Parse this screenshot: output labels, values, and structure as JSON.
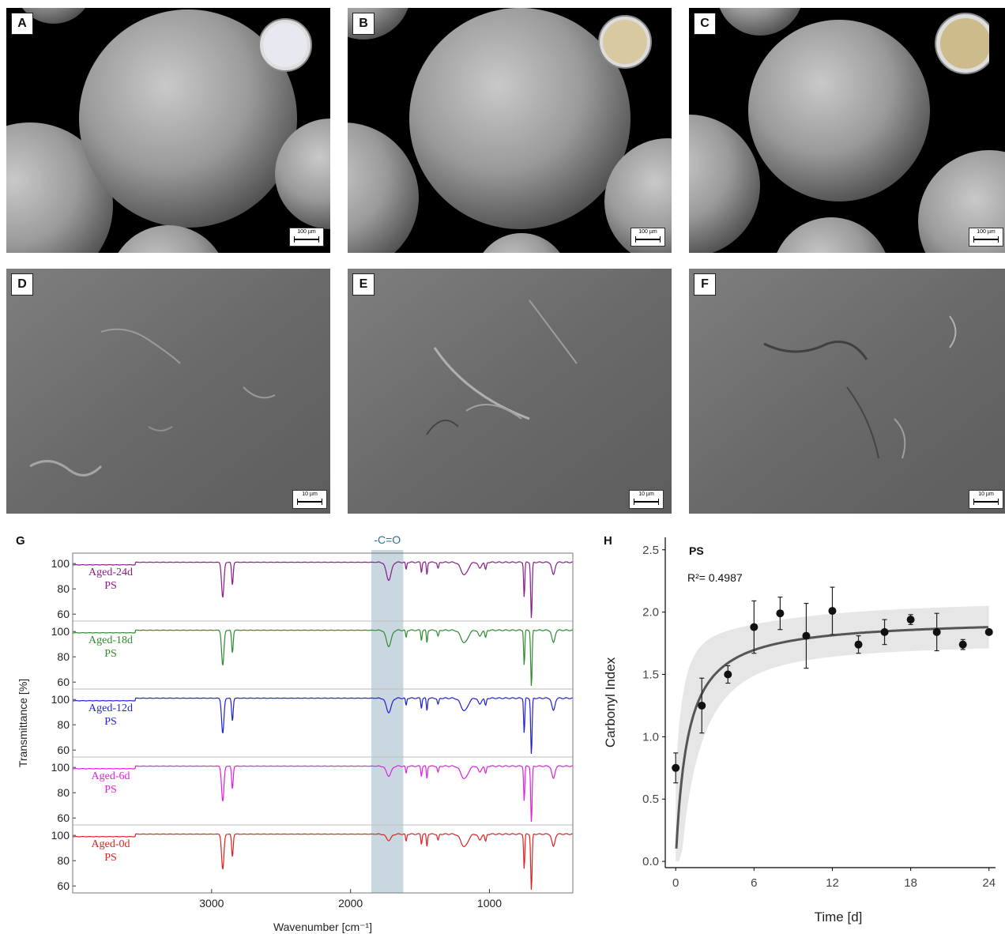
{
  "figure": {
    "panels": [
      {
        "label": "A",
        "scale_bar": "100 µm",
        "dish_color": "#e8e8f0"
      },
      {
        "label": "B",
        "scale_bar": "100 µm",
        "dish_color": "#d9c9a0"
      },
      {
        "label": "C",
        "scale_bar": "100 µm",
        "dish_color": "#cdbb8c"
      },
      {
        "label": "D",
        "scale_bar": "10 µm"
      },
      {
        "label": "E",
        "scale_bar": "10 µm"
      },
      {
        "label": "F",
        "scale_bar": "10 µm"
      }
    ],
    "panel_g_label": "G",
    "panel_h_label": "H"
  },
  "chart_data": [
    {
      "type": "line",
      "ylabel": "Transmittance [%]",
      "xlabel": "Wavenumber [cm⁻¹]",
      "xlim": [
        4000,
        400
      ],
      "x_ticks": [
        "3000",
        "2000",
        "1000"
      ],
      "y_ticks": [
        "100",
        "80",
        "60"
      ],
      "highlight_band": {
        "label": "-C=O",
        "from": 1850,
        "to": 1620,
        "color": "#c9d8e0"
      },
      "series": [
        {
          "name": "Aged-24d",
          "sample": "PS",
          "color": "#8b1a8b"
        },
        {
          "name": "Aged-18d",
          "sample": "PS",
          "color": "#2e8b2e"
        },
        {
          "name": "Aged-12d",
          "sample": "PS",
          "color": "#1f1fd6"
        },
        {
          "name": "Aged-6d",
          "sample": "PS",
          "color": "#e21ee2"
        },
        {
          "name": "Aged-0d",
          "sample": "PS",
          "color": "#e02020"
        }
      ]
    },
    {
      "type": "scatter",
      "annotation": "PS",
      "r2_text": "R²= 0.4987",
      "xlabel": "Time [d]",
      "ylabel": "Carbonyl Index",
      "xlim": [
        -0.8,
        24.5
      ],
      "ylim": [
        -0.05,
        2.6
      ],
      "x_ticks": [
        0,
        6,
        12,
        18,
        24
      ],
      "y_ticks": [
        "0.0",
        "0.5",
        "1.0",
        "1.5",
        "2.0",
        "2.5"
      ],
      "points": [
        {
          "x": 0,
          "y": 0.75,
          "err": 0.12
        },
        {
          "x": 2,
          "y": 1.25,
          "err": 0.22
        },
        {
          "x": 4,
          "y": 1.5,
          "err": 0.07
        },
        {
          "x": 6,
          "y": 1.88,
          "err": 0.21
        },
        {
          "x": 8,
          "y": 1.99,
          "err": 0.13
        },
        {
          "x": 10,
          "y": 1.81,
          "err": 0.26
        },
        {
          "x": 12,
          "y": 2.01,
          "err": 0.19
        },
        {
          "x": 14,
          "y": 1.74,
          "err": 0.07
        },
        {
          "x": 16,
          "y": 1.84,
          "err": 0.1
        },
        {
          "x": 18,
          "y": 1.94,
          "err": 0.04
        },
        {
          "x": 20,
          "y": 1.84,
          "err": 0.15
        },
        {
          "x": 22,
          "y": 1.74,
          "err": 0.04
        },
        {
          "x": 24,
          "y": 1.84,
          "err": 0.0
        }
      ],
      "fit_color": "#555555",
      "ci_color": "#e6e6e6"
    }
  ]
}
